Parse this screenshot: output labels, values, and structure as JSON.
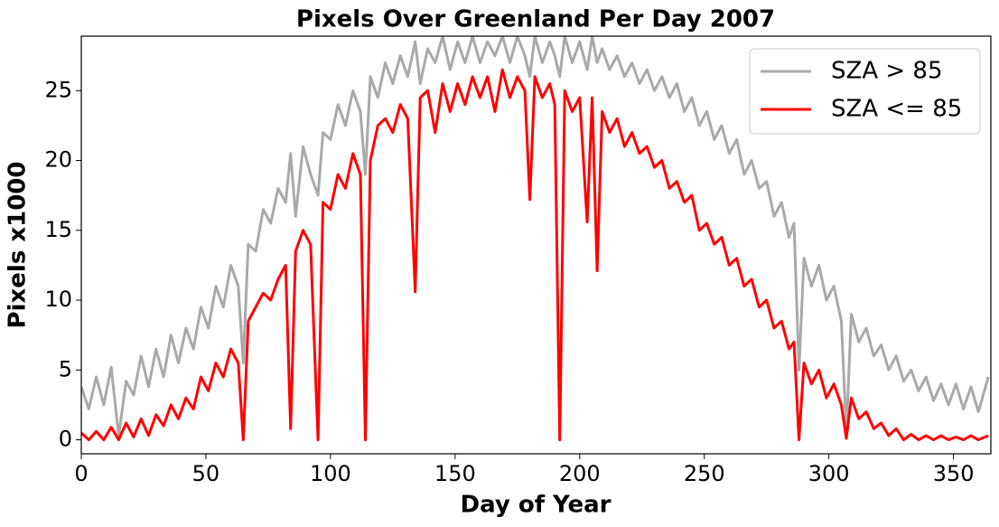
{
  "chart_data": {
    "type": "line",
    "title": "Pixels Over Greenland Per Day 2007",
    "xlabel": "Day of Year",
    "ylabel": "Pixels x1000",
    "xlim": [
      0,
      365
    ],
    "ylim": [
      -1,
      28.9
    ],
    "xticks": [
      0,
      50,
      100,
      150,
      200,
      250,
      300,
      350
    ],
    "yticks": [
      0,
      5,
      10,
      15,
      20,
      25
    ],
    "legend": "upper right",
    "x": [
      0,
      3,
      6,
      9,
      12,
      15,
      18,
      21,
      24,
      27,
      30,
      33,
      36,
      39,
      42,
      45,
      48,
      51,
      54,
      57,
      60,
      63,
      65,
      67,
      70,
      73,
      76,
      79,
      82,
      84,
      86,
      89,
      92,
      95,
      97,
      100,
      103,
      106,
      109,
      112,
      114,
      116,
      119,
      122,
      125,
      128,
      131,
      134,
      136,
      139,
      142,
      145,
      148,
      151,
      154,
      157,
      160,
      163,
      166,
      169,
      172,
      175,
      178,
      180,
      182,
      185,
      188,
      190,
      192,
      194,
      197,
      200,
      203,
      205,
      207,
      209,
      212,
      215,
      218,
      221,
      224,
      227,
      230,
      233,
      236,
      239,
      242,
      245,
      248,
      251,
      254,
      257,
      260,
      263,
      266,
      269,
      272,
      275,
      278,
      281,
      284,
      286,
      288,
      290,
      293,
      296,
      299,
      302,
      305,
      307,
      309,
      312,
      315,
      318,
      321,
      324,
      327,
      330,
      333,
      336,
      339,
      342,
      345,
      348,
      351,
      354,
      357,
      360,
      364
    ],
    "series": [
      {
        "name": "SZA > 85",
        "color": "#a9a9a9",
        "values": [
          3.8,
          2.2,
          4.5,
          2.5,
          5.2,
          0.3,
          4.2,
          3.2,
          6,
          3.8,
          6.5,
          4.5,
          7.5,
          5.5,
          8,
          6.5,
          9.5,
          8,
          11,
          9.5,
          12.5,
          11,
          5.5,
          14,
          13.5,
          16.5,
          15.5,
          18,
          17,
          20.5,
          16,
          21,
          19,
          17.5,
          22,
          21.5,
          24,
          22.5,
          25,
          23.5,
          19,
          26,
          24.5,
          27,
          25.5,
          27.5,
          26,
          28.5,
          25.5,
          28,
          27,
          28.9,
          26.5,
          28.5,
          27,
          28.9,
          27,
          28.5,
          27.5,
          28.9,
          27,
          28.9,
          27.5,
          26,
          28.9,
          27,
          28.5,
          27.5,
          26,
          28.9,
          27,
          28.5,
          26.5,
          28.9,
          27,
          28,
          26.5,
          27.5,
          26,
          27,
          25.5,
          26.5,
          25,
          26,
          24.5,
          25.5,
          23.5,
          24.5,
          22.5,
          23.5,
          21.5,
          22.5,
          20.5,
          21.5,
          19,
          20,
          18,
          18.5,
          16,
          17,
          14.5,
          15.5,
          5,
          13,
          11,
          12.5,
          10,
          11,
          8.5,
          0.5,
          9,
          7,
          8,
          6,
          6.8,
          5,
          6,
          4.2,
          5,
          3.5,
          4.5,
          2.8,
          4,
          2.5,
          4,
          2.2,
          3.8,
          2,
          4.5
        ]
      },
      {
        "name": "SZA <= 85",
        "color": "#ff0000",
        "values": [
          0.5,
          0,
          0.6,
          0,
          0.9,
          0,
          1.2,
          0.2,
          1.5,
          0.3,
          1.8,
          1,
          2.5,
          1.5,
          3,
          2.2,
          4.5,
          3.5,
          5.5,
          4.5,
          6.5,
          5.5,
          0,
          8.5,
          9.5,
          10.5,
          10,
          11.5,
          12.5,
          0.8,
          13.5,
          15,
          14,
          0,
          17,
          16.5,
          19,
          18,
          20.5,
          19,
          0,
          20,
          22.5,
          23,
          22,
          24,
          23,
          10.6,
          24.5,
          25,
          22,
          25.5,
          23.5,
          25.5,
          24,
          26,
          24.5,
          26,
          23.5,
          26.5,
          24.5,
          26,
          25,
          17.2,
          26,
          24.5,
          25.5,
          24,
          0,
          25,
          23.5,
          24.5,
          15.6,
          24.5,
          12.1,
          23.5,
          22,
          23,
          21,
          22,
          20.5,
          21,
          19.5,
          20,
          18,
          18.5,
          17,
          17.5,
          15,
          15.5,
          14,
          14.5,
          12.5,
          13,
          11,
          11.5,
          9.5,
          10,
          8,
          8.5,
          6.5,
          7,
          0,
          5.5,
          4,
          5,
          3,
          4,
          2.5,
          0.1,
          3,
          1.5,
          2,
          0.8,
          1.2,
          0.3,
          0.8,
          0,
          0.4,
          0,
          0.3,
          0,
          0.3,
          0,
          0.2,
          0,
          0.3,
          0,
          0.3
        ]
      }
    ]
  }
}
